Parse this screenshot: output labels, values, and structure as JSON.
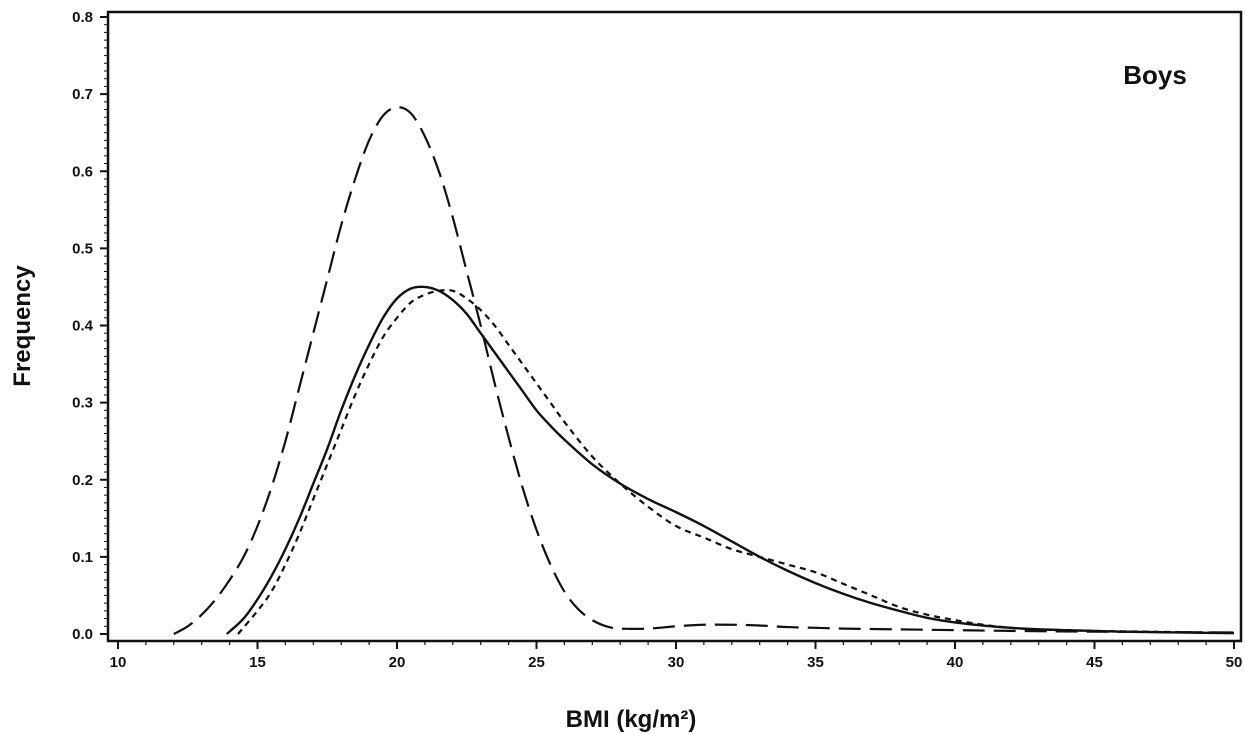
{
  "chart_data": {
    "type": "line",
    "title": "",
    "xlabel": "BMI (kg/m²)",
    "ylabel": "Frequency",
    "annotation": "Boys",
    "xlim": [
      10,
      50
    ],
    "ylim": [
      0,
      0.8
    ],
    "xticks": [
      10,
      15,
      20,
      25,
      30,
      35,
      40,
      45,
      50
    ],
    "yticks": [
      "0.0",
      "0.1",
      "0.2",
      "0.3",
      "0.4",
      "0.5",
      "0.6",
      "0.7",
      "0.8"
    ],
    "grid": false,
    "legend": "none",
    "line_color": "#111111",
    "series": [
      {
        "style": "solid",
        "x": [
          13.9,
          14.5,
          15,
          15.5,
          16,
          16.5,
          17,
          17.5,
          18,
          18.5,
          19,
          19.5,
          20,
          20.5,
          21,
          21.5,
          22,
          22.5,
          23,
          23.5,
          24,
          24.5,
          25,
          25.5,
          26,
          27,
          28,
          29,
          30,
          31,
          32,
          33,
          34,
          35,
          36,
          37,
          38,
          39,
          40,
          41,
          42,
          43,
          44,
          45,
          46,
          47,
          48,
          49,
          50
        ],
        "y": [
          0.0,
          0.02,
          0.045,
          0.075,
          0.11,
          0.15,
          0.195,
          0.24,
          0.29,
          0.335,
          0.375,
          0.41,
          0.435,
          0.448,
          0.45,
          0.445,
          0.433,
          0.415,
          0.39,
          0.365,
          0.34,
          0.315,
          0.29,
          0.27,
          0.252,
          0.22,
          0.195,
          0.175,
          0.158,
          0.14,
          0.12,
          0.1,
          0.082,
          0.066,
          0.052,
          0.04,
          0.03,
          0.021,
          0.015,
          0.011,
          0.008,
          0.006,
          0.005,
          0.004,
          0.003,
          0.0025,
          0.002,
          0.0015,
          0.001
        ]
      },
      {
        "style": "dashed",
        "x": [
          12.0,
          12.5,
          13,
          13.5,
          14,
          14.5,
          15,
          15.5,
          16,
          16.5,
          17,
          17.5,
          18,
          18.5,
          19,
          19.5,
          20,
          20.5,
          21,
          21.5,
          22,
          22.5,
          23,
          23.5,
          24,
          24.5,
          25,
          25.5,
          26,
          26.5,
          27,
          27.5,
          28,
          29,
          30,
          31,
          32,
          33,
          34,
          35,
          36,
          38,
          40,
          42,
          45,
          50
        ],
        "y": [
          0.0,
          0.01,
          0.025,
          0.045,
          0.07,
          0.1,
          0.14,
          0.19,
          0.25,
          0.32,
          0.39,
          0.46,
          0.53,
          0.59,
          0.64,
          0.672,
          0.683,
          0.675,
          0.645,
          0.6,
          0.54,
          0.47,
          0.4,
          0.325,
          0.255,
          0.19,
          0.135,
          0.09,
          0.055,
          0.032,
          0.018,
          0.01,
          0.007,
          0.007,
          0.01,
          0.012,
          0.012,
          0.011,
          0.009,
          0.008,
          0.007,
          0.006,
          0.005,
          0.004,
          0.003,
          0.002
        ]
      },
      {
        "style": "dotted",
        "x": [
          14.3,
          15,
          15.5,
          16,
          16.5,
          17,
          17.5,
          18,
          18.5,
          19,
          19.5,
          20,
          20.5,
          21,
          21.5,
          22,
          22.5,
          23,
          23.5,
          24,
          24.5,
          25,
          25.5,
          26,
          27,
          28,
          29,
          30,
          31,
          32,
          33,
          34,
          35,
          36,
          37,
          38,
          39,
          40,
          41,
          42,
          43,
          44,
          45,
          46,
          47,
          48,
          49,
          50
        ],
        "y": [
          0.0,
          0.03,
          0.055,
          0.09,
          0.13,
          0.175,
          0.22,
          0.265,
          0.31,
          0.35,
          0.385,
          0.41,
          0.43,
          0.44,
          0.445,
          0.445,
          0.435,
          0.42,
          0.4,
          0.375,
          0.35,
          0.325,
          0.3,
          0.275,
          0.23,
          0.195,
          0.165,
          0.14,
          0.125,
          0.11,
          0.1,
          0.09,
          0.08,
          0.065,
          0.05,
          0.035,
          0.025,
          0.018,
          0.012,
          0.008,
          0.006,
          0.005,
          0.004,
          0.0035,
          0.003,
          0.0025,
          0.002,
          0.0015
        ]
      }
    ]
  }
}
